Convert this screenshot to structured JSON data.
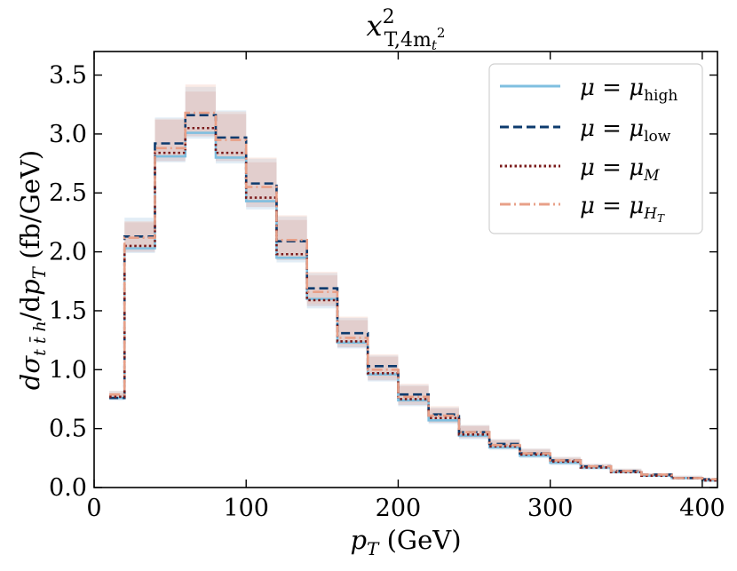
{
  "chart_data": {
    "type": "line",
    "style": "step-histogram with scale-uncertainty bands",
    "title": {
      "base": "x",
      "sup": "2",
      "sub": "T,4m",
      "sub_sub": "t",
      "sub_sup": "2"
    },
    "xlabel": {
      "italic": "p",
      "sub": "T",
      "rest": " (GeV)"
    },
    "ylabel": {
      "d1": "dσ",
      "d1_sub": "t t̄ h",
      "slash": "/d",
      "p": "p",
      "p_sub": "T",
      "rest": " (fb/GeV)"
    },
    "xlim": [
      0,
      410
    ],
    "ylim": [
      0,
      3.7
    ],
    "xticks": [
      0,
      100,
      200,
      300,
      400
    ],
    "yticks": [
      "0.0",
      "0.5",
      "1.0",
      "1.5",
      "2.0",
      "2.5",
      "3.0",
      "3.5"
    ],
    "grid": false,
    "legend_position": "top-right",
    "bin_edges": [
      10,
      20,
      40,
      60,
      80,
      100,
      120,
      140,
      160,
      180,
      200,
      220,
      240,
      260,
      280,
      300,
      320,
      340,
      360,
      380,
      400,
      420
    ],
    "series": [
      {
        "name": "μ = μ_high",
        "label_main": "μ = μ",
        "label_sub": "high",
        "color": "#7fbfe0",
        "dash": "solid",
        "values": [
          0.76,
          2.03,
          2.81,
          3.01,
          2.8,
          2.43,
          1.95,
          1.6,
          1.23,
          0.96,
          0.74,
          0.57,
          0.44,
          0.34,
          0.27,
          0.21,
          0.17,
          0.13,
          0.1,
          0.08,
          0.06
        ]
      },
      {
        "name": "μ = μ_low",
        "label_main": "μ = μ",
        "label_sub": "low",
        "color": "#0d3b6e",
        "dash": "dashed",
        "values": [
          0.76,
          2.13,
          2.92,
          3.16,
          2.97,
          2.58,
          2.09,
          1.69,
          1.31,
          1.03,
          0.79,
          0.62,
          0.47,
          0.37,
          0.29,
          0.23,
          0.18,
          0.14,
          0.11,
          0.08,
          0.07
        ]
      },
      {
        "name": "μ = μ_M",
        "label_main": "μ = μ",
        "label_sub": "M",
        "color": "#7a1a1a",
        "dash": "dotted",
        "values": [
          0.77,
          2.05,
          2.84,
          3.05,
          2.84,
          2.46,
          1.98,
          1.59,
          1.24,
          0.97,
          0.75,
          0.59,
          0.45,
          0.35,
          0.28,
          0.22,
          0.17,
          0.13,
          0.1,
          0.08,
          0.06
        ]
      },
      {
        "name": "μ = μ_H_T",
        "label_main": "μ = μ",
        "label_sub": "H",
        "label_sub_sub": "T",
        "color": "#e8a088",
        "dash": "dashdot",
        "values": [
          0.79,
          2.12,
          2.88,
          3.18,
          2.95,
          2.55,
          2.1,
          1.66,
          1.27,
          1.0,
          0.77,
          0.61,
          0.47,
          0.36,
          0.29,
          0.23,
          0.18,
          0.14,
          0.11,
          0.08,
          0.07
        ]
      }
    ],
    "bands": [
      {
        "color": "#a5c8e4",
        "lower": [
          0.74,
          1.99,
          2.76,
          2.96,
          2.75,
          2.36,
          1.91,
          1.52,
          1.18,
          0.9,
          0.69,
          0.54,
          0.41,
          0.32,
          0.25,
          0.19,
          0.15,
          0.12,
          0.09,
          0.07,
          0.05
        ],
        "upper": [
          0.82,
          2.29,
          3.14,
          3.4,
          3.2,
          2.79,
          2.3,
          1.82,
          1.44,
          1.12,
          0.87,
          0.68,
          0.53,
          0.41,
          0.33,
          0.26,
          0.2,
          0.16,
          0.12,
          0.1,
          0.08
        ]
      },
      {
        "color": "#c9a0a0",
        "lower": [
          0.75,
          2.0,
          2.77,
          2.98,
          2.77,
          2.38,
          1.93,
          1.54,
          1.19,
          0.91,
          0.7,
          0.55,
          0.42,
          0.33,
          0.26,
          0.2,
          0.16,
          0.12,
          0.09,
          0.07,
          0.05
        ],
        "upper": [
          0.8,
          2.25,
          3.12,
          3.36,
          3.17,
          2.76,
          2.27,
          1.8,
          1.42,
          1.11,
          0.86,
          0.67,
          0.52,
          0.4,
          0.32,
          0.25,
          0.19,
          0.15,
          0.12,
          0.09,
          0.07
        ]
      },
      {
        "color": "#f2c0b0",
        "lower": [
          0.76,
          2.02,
          2.8,
          3.0,
          2.79,
          2.41,
          1.95,
          1.56,
          1.21,
          0.93,
          0.72,
          0.56,
          0.43,
          0.33,
          0.26,
          0.2,
          0.16,
          0.12,
          0.1,
          0.07,
          0.06
        ],
        "upper": [
          0.82,
          2.26,
          3.13,
          3.42,
          3.19,
          2.8,
          2.31,
          1.83,
          1.45,
          1.13,
          0.88,
          0.69,
          0.53,
          0.41,
          0.33,
          0.26,
          0.2,
          0.16,
          0.12,
          0.1,
          0.08
        ]
      }
    ]
  }
}
